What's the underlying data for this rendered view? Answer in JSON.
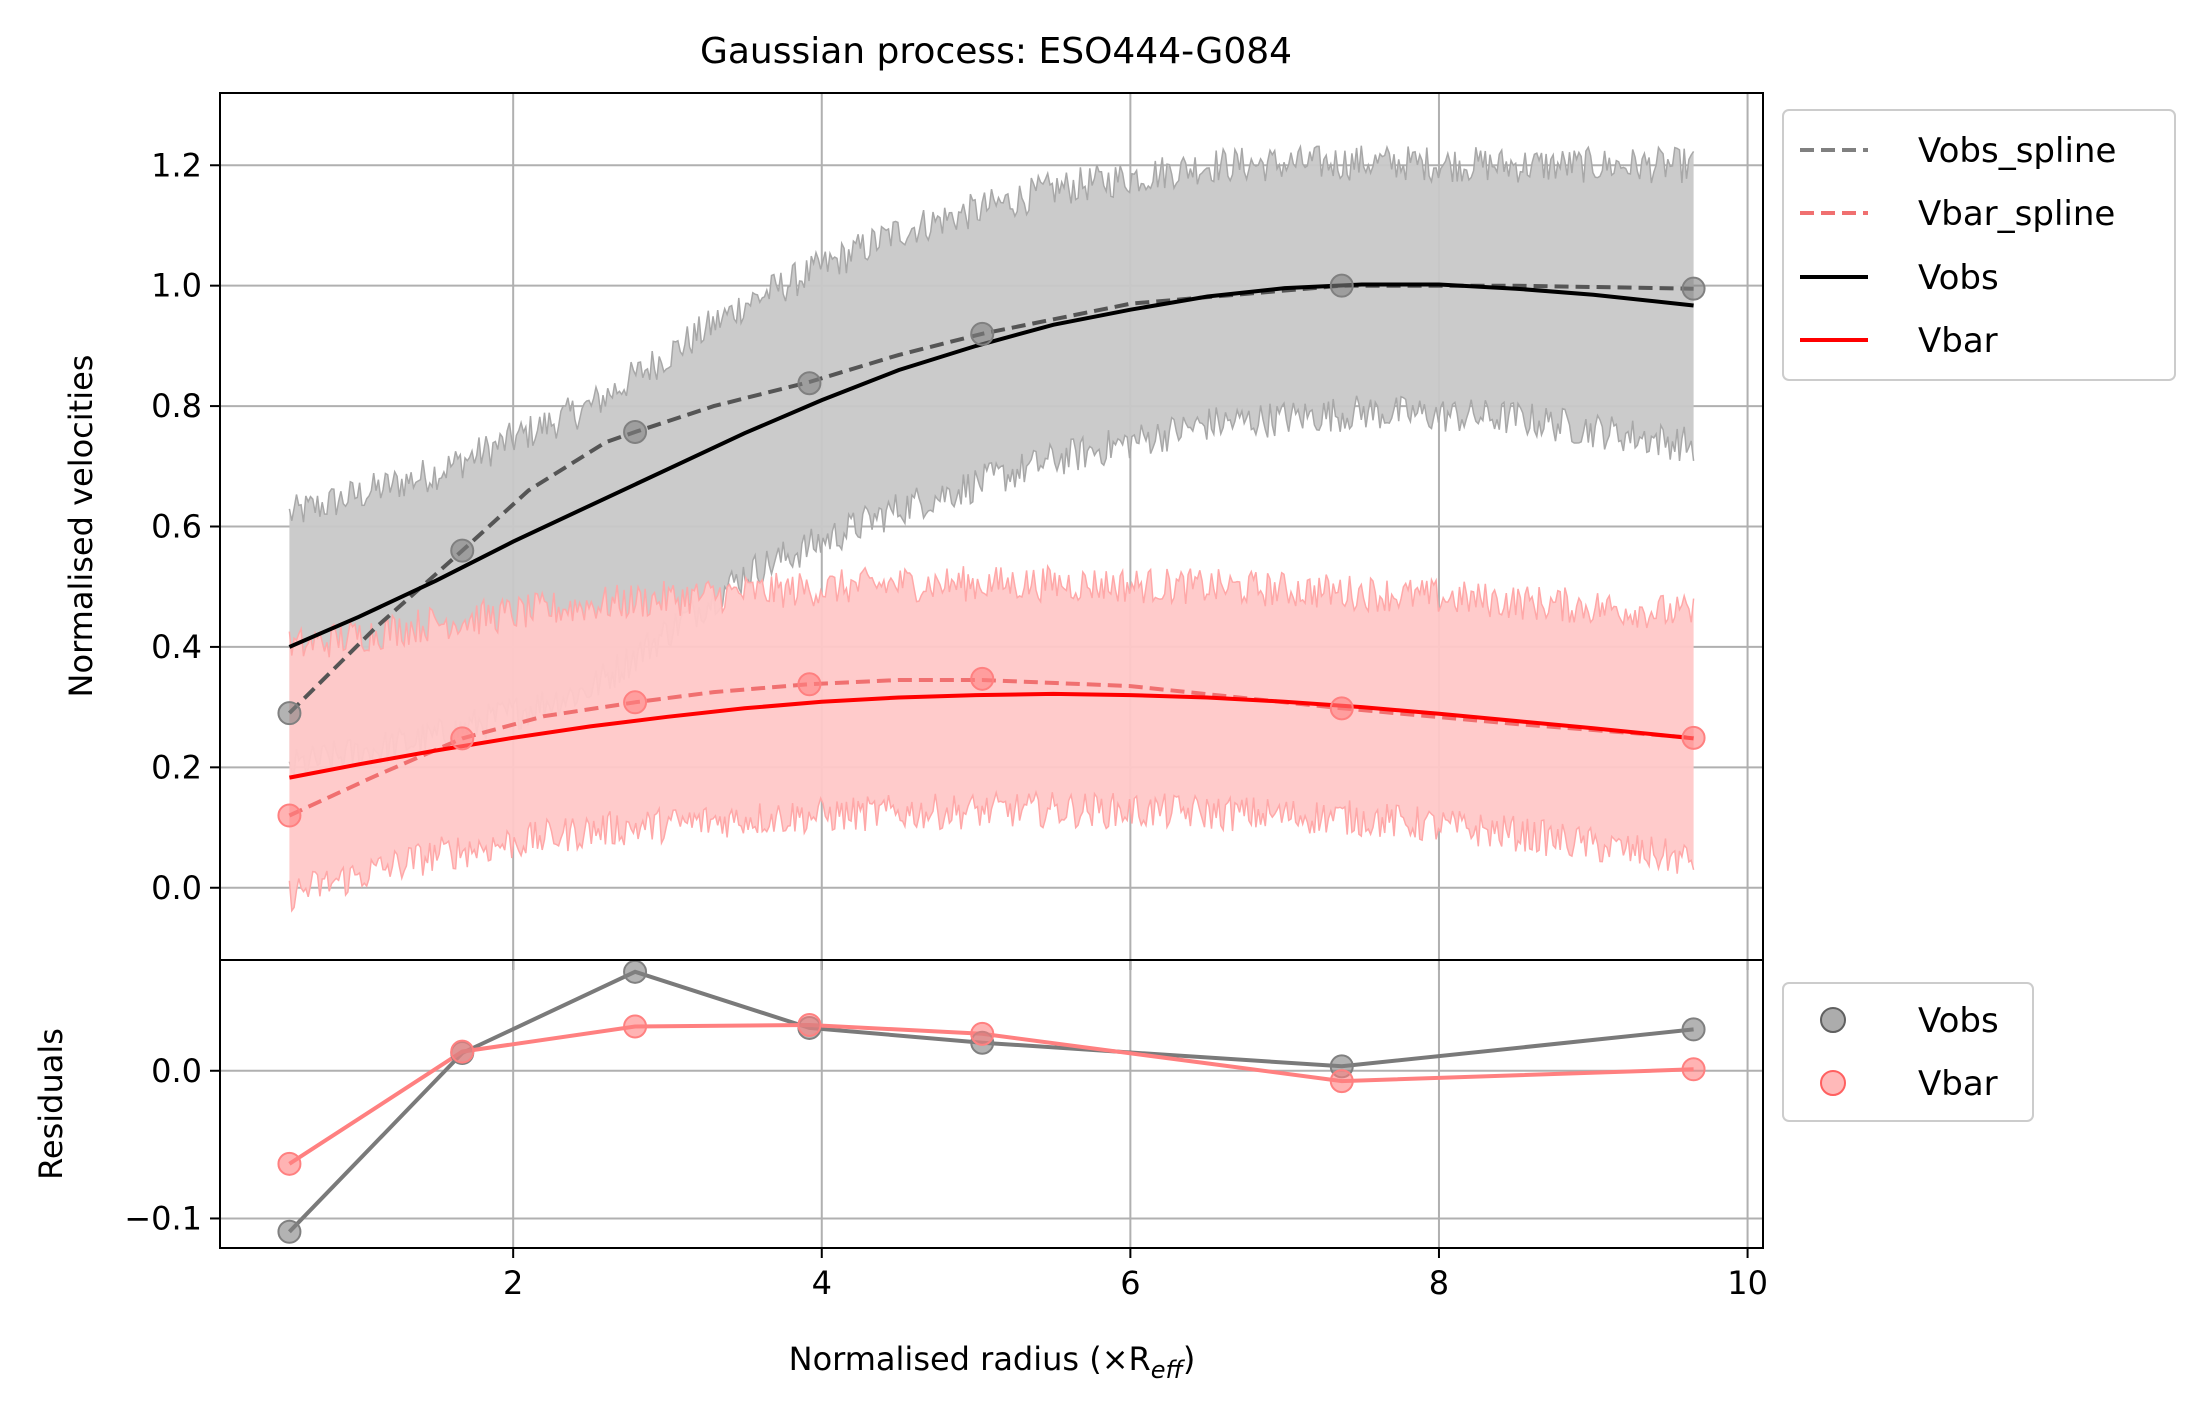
{
  "chart_data": [
    {
      "type": "line",
      "title": "Gaussian process: ESO444-G084",
      "xlabel": "",
      "ylabel": "Normalised velocities",
      "xlim": [
        0.1,
        10.1
      ],
      "ylim": [
        -0.12,
        1.32
      ],
      "grid": true,
      "legend_position": "outside-top-right",
      "x_ticks": [
        2,
        4,
        6,
        8,
        10
      ],
      "y_ticks": [
        0.0,
        0.2,
        0.4,
        0.6,
        0.8,
        1.0,
        1.2
      ],
      "x_tick_labels": [
        "2",
        "4",
        "6",
        "8",
        "10"
      ],
      "y_tick_labels": [
        "0.0",
        "0.2",
        "0.4",
        "0.6",
        "0.8",
        "1.0",
        "1.2"
      ],
      "observed_x": [
        0.55,
        1.67,
        2.79,
        3.92,
        5.04,
        7.37,
        9.65
      ],
      "series": [
        {
          "name": "Vobs_spline",
          "style": "dashed",
          "color": "#555555",
          "x": [
            0.55,
            1.1,
            1.67,
            2.1,
            2.6,
            2.79,
            3.3,
            3.92,
            4.5,
            5.04,
            6.0,
            7.37,
            8.5,
            9.65
          ],
          "y": [
            0.29,
            0.43,
            0.56,
            0.66,
            0.74,
            0.757,
            0.8,
            0.84,
            0.885,
            0.92,
            0.97,
            1.0,
            1.0,
            0.995
          ]
        },
        {
          "name": "Vbar_spline",
          "style": "dashed",
          "color": "#f07070",
          "x": [
            0.55,
            1.1,
            1.67,
            2.2,
            2.79,
            3.3,
            3.92,
            4.5,
            5.04,
            6.0,
            7.37,
            8.5,
            9.65
          ],
          "y": [
            0.12,
            0.185,
            0.248,
            0.285,
            0.308,
            0.325,
            0.338,
            0.345,
            0.345,
            0.335,
            0.298,
            0.272,
            0.249
          ]
        },
        {
          "name": "Vobs",
          "style": "solid",
          "color": "#000000",
          "x": [
            0.55,
            1.0,
            1.5,
            2.0,
            2.5,
            3.0,
            3.5,
            4.0,
            4.5,
            5.0,
            5.5,
            6.0,
            6.5,
            7.0,
            7.5,
            8.0,
            8.5,
            9.0,
            9.65
          ],
          "y": [
            0.4,
            0.45,
            0.51,
            0.575,
            0.635,
            0.695,
            0.755,
            0.81,
            0.86,
            0.9,
            0.935,
            0.96,
            0.982,
            0.996,
            1.002,
            1.002,
            0.995,
            0.985,
            0.967
          ]
        },
        {
          "name": "Vbar",
          "style": "solid",
          "color": "#ff0000",
          "x": [
            0.55,
            1.0,
            1.5,
            2.0,
            2.5,
            3.0,
            3.5,
            4.0,
            4.5,
            5.0,
            5.5,
            6.0,
            6.5,
            7.0,
            7.5,
            8.0,
            8.5,
            9.0,
            9.65
          ],
          "y": [
            0.183,
            0.205,
            0.228,
            0.249,
            0.268,
            0.284,
            0.298,
            0.309,
            0.316,
            0.32,
            0.322,
            0.32,
            0.316,
            0.309,
            0.3,
            0.289,
            0.277,
            0.265,
            0.248
          ]
        }
      ],
      "observed_points": [
        {
          "series": "Vobs",
          "color": "#808080",
          "y": [
            0.29,
            0.56,
            0.757,
            0.838,
            0.92,
            1.0,
            0.995
          ]
        },
        {
          "series": "Vbar",
          "color": "#ff8080",
          "y": [
            0.12,
            0.248,
            0.308,
            0.338,
            0.347,
            0.298,
            0.249
          ]
        }
      ],
      "bands": [
        {
          "series": "Vobs",
          "fill": "#c8c8c8",
          "edge": "#a8a8a8",
          "x": [
            0.55,
            1.5,
            2.5,
            3.5,
            4.5,
            5.5,
            6.5,
            7.5,
            8.5,
            9.65
          ],
          "lower": [
            0.2,
            0.25,
            0.33,
            0.52,
            0.63,
            0.71,
            0.77,
            0.79,
            0.78,
            0.735
          ],
          "upper": [
            0.62,
            0.69,
            0.8,
            0.97,
            1.09,
            1.16,
            1.2,
            1.205,
            1.2,
            1.2
          ]
        },
        {
          "series": "Vbar",
          "fill": "#ffc8c8",
          "edge": "#ffa8a8",
          "x": [
            0.55,
            1.5,
            2.5,
            3.5,
            4.5,
            5.5,
            6.5,
            7.5,
            8.5,
            9.65
          ],
          "lower": [
            -0.01,
            0.055,
            0.095,
            0.115,
            0.125,
            0.13,
            0.125,
            0.115,
            0.09,
            0.045
          ],
          "upper": [
            0.4,
            0.44,
            0.47,
            0.49,
            0.505,
            0.505,
            0.5,
            0.49,
            0.475,
            0.455
          ]
        }
      ]
    },
    {
      "type": "line",
      "title": "",
      "xlabel": "Normalised radius (×R",
      "xlabel_sub": "eff",
      "xlabel_close": ")",
      "ylabel": "Residuals",
      "xlim": [
        0.1,
        10.1
      ],
      "ylim": [
        -0.12,
        0.075
      ],
      "grid": true,
      "legend_position": "outside-top-right",
      "x_ticks": [
        2,
        4,
        6,
        8,
        10
      ],
      "y_ticks": [
        -0.1,
        0.0
      ],
      "x_tick_labels": [
        "2",
        "4",
        "6",
        "8",
        "10"
      ],
      "y_tick_labels": [
        "−0.1",
        "0.0"
      ],
      "series": [
        {
          "name": "Vobs",
          "color": "#808080",
          "line_color": "#7a7a7a",
          "x": [
            0.55,
            1.67,
            2.79,
            3.92,
            5.04,
            7.37,
            9.65
          ],
          "y": [
            -0.109,
            0.012,
            0.067,
            0.029,
            0.019,
            0.003,
            0.028
          ]
        },
        {
          "name": "Vbar",
          "color": "#ff8080",
          "line_color": "#ff8080",
          "x": [
            0.55,
            1.67,
            2.79,
            3.92,
            5.04,
            7.37,
            9.65
          ],
          "y": [
            -0.063,
            0.013,
            0.03,
            0.031,
            0.025,
            -0.007,
            0.001
          ]
        }
      ]
    }
  ]
}
